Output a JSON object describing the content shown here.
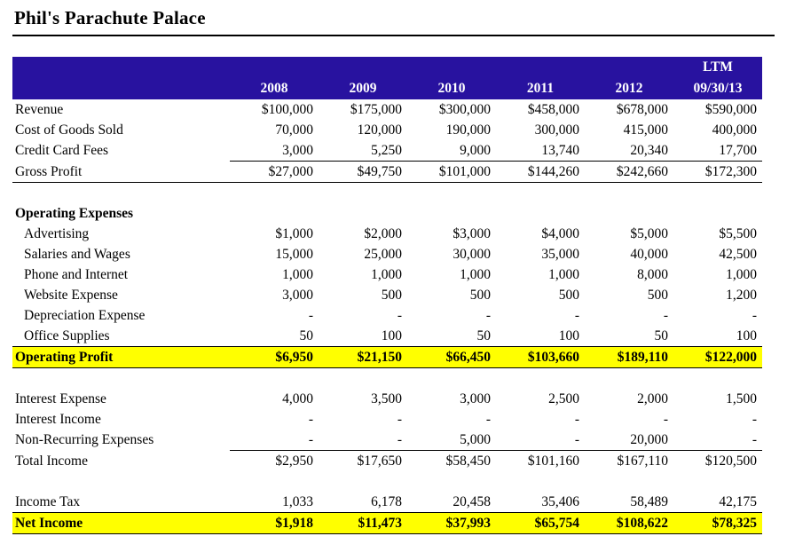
{
  "page": {
    "title": "Phil's Parachute Palace"
  },
  "colors": {
    "header_bg": "#28129F",
    "highlight": "#FFFF00",
    "header_text": "#FFFFFF"
  },
  "table": {
    "ltm_label": "LTM",
    "columns": [
      "2008",
      "2009",
      "2010",
      "2011",
      "2012",
      "09/30/13"
    ],
    "rows": [
      {
        "label": "Revenue",
        "values": [
          "$100,000",
          "$175,000",
          "$300,000",
          "$458,000",
          "$678,000",
          "$590,000"
        ]
      },
      {
        "label": "Cost of Goods Sold",
        "values": [
          "70,000",
          "120,000",
          "190,000",
          "300,000",
          "415,000",
          "400,000"
        ]
      },
      {
        "label": "Credit Card Fees",
        "values": [
          "3,000",
          "5,250",
          "9,000",
          "13,740",
          "20,340",
          "17,700"
        ],
        "style": "underline-values"
      },
      {
        "label": "Gross Profit",
        "values": [
          "$27,000",
          "$49,750",
          "$101,000",
          "$144,260",
          "$242,660",
          "$172,300"
        ],
        "style": "underline-full"
      },
      {
        "style": "spacer"
      },
      {
        "label": "Operating Expenses",
        "values": [
          "",
          "",
          "",
          "",
          "",
          ""
        ],
        "style": "bold-label"
      },
      {
        "label": "Advertising",
        "indent": true,
        "values": [
          "$1,000",
          "$2,000",
          "$3,000",
          "$4,000",
          "$5,000",
          "$5,500"
        ]
      },
      {
        "label": "Salaries and Wages",
        "indent": true,
        "values": [
          "15,000",
          "25,000",
          "30,000",
          "35,000",
          "40,000",
          "42,500"
        ]
      },
      {
        "label": "Phone and Internet",
        "indent": true,
        "values": [
          "1,000",
          "1,000",
          "1,000",
          "1,000",
          "8,000",
          "1,000"
        ]
      },
      {
        "label": "Website Expense",
        "indent": true,
        "values": [
          "3,000",
          "500",
          "500",
          "500",
          "500",
          "1,200"
        ]
      },
      {
        "label": "Depreciation Expense",
        "indent": true,
        "values": [
          "-",
          "-",
          "-",
          "-",
          "-",
          "-"
        ]
      },
      {
        "label": "Office Supplies",
        "indent": true,
        "values": [
          "50",
          "100",
          "50",
          "100",
          "50",
          "100"
        ]
      },
      {
        "label": "Operating Profit",
        "values": [
          "$6,950",
          "$21,150",
          "$66,450",
          "$103,660",
          "$189,110",
          "$122,000"
        ],
        "style": "highlight"
      },
      {
        "style": "spacer"
      },
      {
        "label": "Interest Expense",
        "values": [
          "4,000",
          "3,500",
          "3,000",
          "2,500",
          "2,000",
          "1,500"
        ]
      },
      {
        "label": "Interest Income",
        "values": [
          "-",
          "-",
          "-",
          "-",
          "-",
          "-"
        ]
      },
      {
        "label": "Non-Recurring Expenses",
        "values": [
          "-",
          "-",
          "5,000",
          "-",
          "20,000",
          "-"
        ],
        "style": "underline-values"
      },
      {
        "label": "Total Income",
        "values": [
          "$2,950",
          "$17,650",
          "$58,450",
          "$101,160",
          "$167,110",
          "$120,500"
        ]
      },
      {
        "style": "spacer"
      },
      {
        "label": "Income Tax",
        "values": [
          "1,033",
          "6,178",
          "20,458",
          "35,406",
          "58,489",
          "42,175"
        ]
      },
      {
        "label": "Net Income",
        "values": [
          "$1,918",
          "$11,473",
          "$37,993",
          "$65,754",
          "$108,622",
          "$78,325"
        ],
        "style": "highlight"
      }
    ]
  }
}
